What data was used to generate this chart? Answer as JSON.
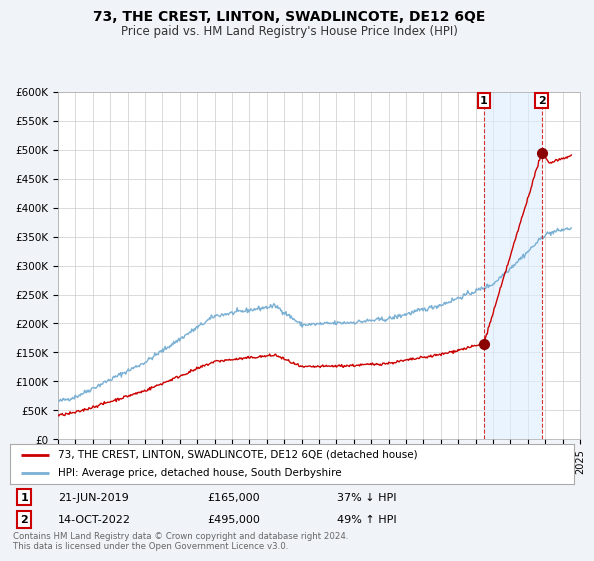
{
  "title": "73, THE CREST, LINTON, SWADLINCOTE, DE12 6QE",
  "subtitle": "Price paid vs. HM Land Registry's House Price Index (HPI)",
  "ylabel_ticks": [
    "£0",
    "£50K",
    "£100K",
    "£150K",
    "£200K",
    "£250K",
    "£300K",
    "£350K",
    "£400K",
    "£450K",
    "£500K",
    "£550K",
    "£600K"
  ],
  "ytick_values": [
    0,
    50000,
    100000,
    150000,
    200000,
    250000,
    300000,
    350000,
    400000,
    450000,
    500000,
    550000,
    600000
  ],
  "xmin": 1995,
  "xmax": 2025,
  "ymin": 0,
  "ymax": 600000,
  "property_color": "#cc0000",
  "hpi_color": "#7ab0d4",
  "shade_color": "#ddeeff",
  "transaction_1": {
    "date": "21-JUN-2019",
    "price": 165000,
    "hpi_relation": "37% ↓ HPI",
    "year": 2019.47
  },
  "transaction_2": {
    "date": "14-OCT-2022",
    "price": 495000,
    "hpi_relation": "49% ↑ HPI",
    "year": 2022.79
  },
  "legend_property": "73, THE CREST, LINTON, SWADLINCOTE, DE12 6QE (detached house)",
  "legend_hpi": "HPI: Average price, detached house, South Derbyshire",
  "footnote": "Contains HM Land Registry data © Crown copyright and database right 2024.\nThis data is licensed under the Open Government Licence v3.0.",
  "background_color": "#f0f4f8",
  "plot_bg_color": "#ffffff",
  "grid_color": "#cccccc"
}
